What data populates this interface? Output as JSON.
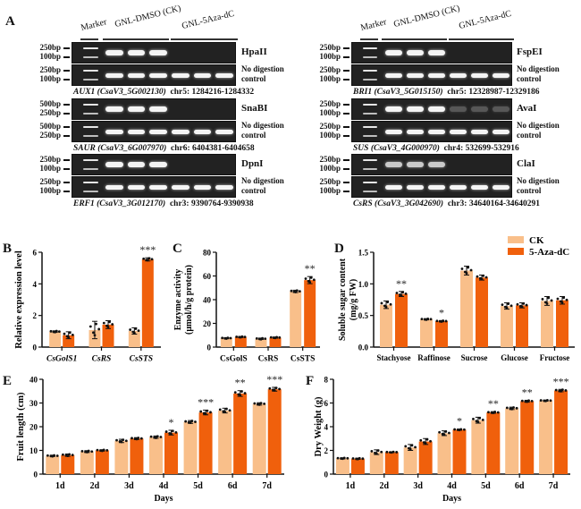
{
  "panel_letters": {
    "a": "A",
    "b": "B",
    "c": "C",
    "d": "D",
    "e": "E",
    "f": "F"
  },
  "gel": {
    "column_labels": {
      "marker": "Marker",
      "ck": "GNL-DMSO (CK)",
      "treat": "GNL-5Aza-dC"
    },
    "left": [
      {
        "enzyme": "HpaII",
        "control": "No digestion control",
        "ladder": [
          "250bp",
          "100bp"
        ],
        "gene": "AUX1",
        "locus": "(CsaV3_5G002130)",
        "coords": "chr5: 1284216-1284332",
        "digest_bands": [
          1,
          1,
          1,
          0,
          0,
          0
        ],
        "control_bands": [
          1,
          1,
          1,
          1,
          1,
          1
        ]
      },
      {
        "enzyme": "SnaBI",
        "control": "No digestion control",
        "ladder": [
          "500bp",
          "250bp"
        ],
        "gene": "SAUR",
        "locus": "(CsaV3_6G007970)",
        "coords": "chr6: 6404381-6404658",
        "digest_bands": [
          1,
          1,
          1,
          0,
          0,
          0
        ],
        "control_bands": [
          1,
          1,
          1,
          1,
          1,
          1
        ]
      },
      {
        "enzyme": "DpnI",
        "control": "No digestion control",
        "ladder": [
          "250bp",
          "100bp"
        ],
        "gene": "ERF1",
        "locus": "(CsaV3_3G012170)",
        "coords": "chr3: 9390764-9390938",
        "digest_bands": [
          1,
          1,
          1,
          0,
          0,
          0
        ],
        "control_bands": [
          1,
          1,
          1,
          1,
          1,
          1
        ]
      }
    ],
    "right": [
      {
        "enzyme": "FspEI",
        "control": "No digestion control",
        "ladder": [
          "250bp",
          "100bp"
        ],
        "gene": "BRI1",
        "locus": "(CsaV3_5G015150)",
        "coords": "chr5: 12328987-12329186",
        "digest_bands": [
          1,
          1,
          1,
          0,
          0,
          0
        ],
        "control_bands": [
          1,
          1,
          1,
          1,
          1,
          1
        ]
      },
      {
        "enzyme": "AvaI",
        "control": "No digestion control",
        "ladder": [
          "250bp",
          "100bp"
        ],
        "gene": "SUS",
        "locus": "(CsaV3_4G000970)",
        "coords": "chr4: 532699-532916",
        "digest_bands": [
          1,
          1,
          1,
          0.25,
          0.25,
          0.25
        ],
        "control_bands": [
          1,
          1,
          1,
          1,
          1,
          1
        ]
      },
      {
        "enzyme": "ClaI",
        "control": "No digestion control",
        "ladder": [
          "250bp",
          "100bp"
        ],
        "gene": "CsRS",
        "locus": "(CsaV3_3G042690)",
        "coords": "chr3: 34640164-34640291",
        "digest_bands": [
          0.8,
          0.8,
          0.8,
          0,
          0,
          0
        ],
        "control_bands": [
          1,
          1,
          1,
          1,
          1,
          1
        ]
      }
    ]
  },
  "legend": {
    "ck": "CK",
    "treat": "5-Aza-dC"
  },
  "colors": {
    "ck": "#f9bf8a",
    "treat": "#f0600c",
    "gel_bg": "#232323",
    "band": "#f4f4f4"
  },
  "chart_data": [
    {
      "id": "B",
      "type": "bar",
      "title": "",
      "ylabel": "Relative expression level",
      "xlabel": "",
      "categories": [
        "CsGolS1",
        "CsRS",
        "CsSTS"
      ],
      "italic_categories": true,
      "ylim": [
        0,
        6
      ],
      "yticks": [
        0,
        2,
        4,
        6
      ],
      "series": [
        {
          "name": "CK",
          "values": [
            0.98,
            1.08,
            1.02
          ],
          "errors": [
            0.05,
            0.55,
            0.2
          ]
        },
        {
          "name": "5-Aza-dC",
          "values": [
            0.75,
            1.42,
            5.55
          ],
          "errors": [
            0.22,
            0.25,
            0.1
          ]
        }
      ],
      "significance": [
        "",
        "",
        "***"
      ]
    },
    {
      "id": "C",
      "type": "bar",
      "title": "",
      "ylabel": "Enzyme activity (μmol/h/g protein)",
      "xlabel": "",
      "categories": [
        "CsGolS",
        "CsRS",
        "CsSTS"
      ],
      "ylim": [
        0,
        80
      ],
      "yticks": [
        0,
        20,
        40,
        60,
        80
      ],
      "series": [
        {
          "name": "CK",
          "values": [
            7.5,
            7.0,
            47.0
          ],
          "errors": [
            0.5,
            0.6,
            1.0
          ]
        },
        {
          "name": "5-Aza-dC",
          "values": [
            8.5,
            8.0,
            56.5
          ],
          "errors": [
            0.5,
            0.5,
            3.0
          ]
        }
      ],
      "significance": [
        "",
        "",
        "**"
      ]
    },
    {
      "id": "D",
      "type": "bar",
      "title": "",
      "ylabel": "Soluble sugar content (mg/g FW)",
      "xlabel": "",
      "categories": [
        "Stachyose",
        "Raffinose",
        "Sucrose",
        "Glucose",
        "Fructose"
      ],
      "ylim": [
        0,
        1.5
      ],
      "yticks": [
        0.0,
        0.5,
        1.0,
        1.5
      ],
      "series": [
        {
          "name": "CK",
          "values": [
            0.67,
            0.44,
            1.21,
            0.65,
            0.73
          ],
          "errors": [
            0.06,
            0.01,
            0.07,
            0.05,
            0.07
          ]
        },
        {
          "name": "5-Aza-dC",
          "values": [
            0.84,
            0.41,
            1.1,
            0.66,
            0.74
          ],
          "errors": [
            0.04,
            0.01,
            0.04,
            0.04,
            0.06
          ]
        }
      ],
      "significance": [
        "**",
        "*",
        "",
        "",
        ""
      ],
      "legend": "top-right"
    },
    {
      "id": "E",
      "type": "bar",
      "title": "",
      "ylabel": "Fruit length (cm)",
      "xlabel": "Days",
      "categories": [
        "1d",
        "2d",
        "3d",
        "4d",
        "5d",
        "6d",
        "7d"
      ],
      "ylim": [
        0,
        40
      ],
      "yticks": [
        0,
        10,
        20,
        30,
        40
      ],
      "series": [
        {
          "name": "CK",
          "values": [
            7.7,
            9.5,
            14.0,
            15.6,
            22.0,
            26.8,
            29.6
          ],
          "errors": [
            0.3,
            0.4,
            0.7,
            0.5,
            0.6,
            1.0,
            0.5
          ]
        },
        {
          "name": "5-Aza-dC",
          "values": [
            8.0,
            10.0,
            15.0,
            17.5,
            26.0,
            34.0,
            35.8
          ],
          "errors": [
            0.5,
            0.3,
            0.4,
            1.0,
            1.0,
            1.2,
            0.8
          ]
        }
      ],
      "significance": [
        "",
        "",
        "",
        "*",
        "***",
        "**",
        "***"
      ]
    },
    {
      "id": "F",
      "type": "bar",
      "title": "",
      "ylabel": "Dry Weight (g)",
      "xlabel": "Days",
      "categories": [
        "1d",
        "2d",
        "3d",
        "4d",
        "5d",
        "6d",
        "7d"
      ],
      "ylim": [
        0,
        8
      ],
      "yticks": [
        0,
        2,
        4,
        6,
        8
      ],
      "series": [
        {
          "name": "CK",
          "values": [
            1.33,
            1.85,
            2.25,
            3.45,
            4.55,
            5.55,
            6.2
          ],
          "errors": [
            0.05,
            0.2,
            0.25,
            0.2,
            0.25,
            0.1,
            0.05
          ]
        },
        {
          "name": "5-Aza-dC",
          "values": [
            1.3,
            1.85,
            2.75,
            3.75,
            5.2,
            6.15,
            7.05
          ],
          "errors": [
            0.05,
            0.03,
            0.25,
            0.05,
            0.07,
            0.08,
            0.1
          ]
        }
      ],
      "significance": [
        "",
        "",
        "",
        "*",
        "**",
        "**",
        "***"
      ]
    }
  ]
}
